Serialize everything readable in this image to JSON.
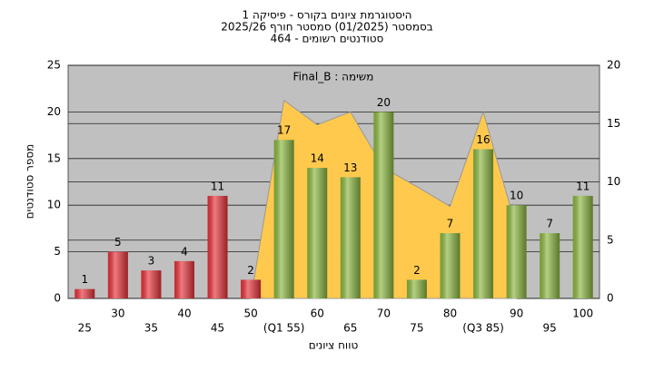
{
  "chart_data": {
    "type": "bar",
    "title": "היסטוגרמת ציונים בקורס - פיסיקה 1",
    "subtitle": "בסמסטר  (01/2025)  סמסטר חורף 2025/26",
    "subtitle2": "סטודנטים רשומים - 464",
    "annotation": "Final_B : משימה",
    "y_label": "מספר סטודנטים",
    "x_label": "טווח ציונים",
    "categories": [
      "25",
      "30",
      "35",
      "40",
      "45",
      "50",
      "(Q1 55)",
      "60",
      "65",
      "70",
      "75",
      "80",
      "(Q3 85)",
      "90",
      "95",
      "100"
    ],
    "values": [
      1,
      5,
      3,
      4,
      11,
      2,
      17,
      14,
      13,
      20,
      2,
      7,
      16,
      10,
      7,
      11
    ],
    "colors": [
      "#e8333a",
      "#e8333a",
      "#e8333a",
      "#e8333a",
      "#e8333a",
      "#e8333a",
      "#8cb840",
      "#8cb840",
      "#8cb840",
      "#8cb840",
      "#8cb840",
      "#8cb840",
      "#8cb840",
      "#8cb840",
      "#8cb840",
      "#8cb840"
    ],
    "area": {
      "color": "#ffc94d",
      "axis": "y2",
      "values": [
        null,
        null,
        null,
        null,
        null,
        0,
        17,
        14.9,
        16,
        11.2,
        9.6,
        7.9,
        16,
        6,
        null,
        null
      ]
    },
    "ylim": [
      0,
      25
    ],
    "yticks": [
      0,
      5,
      10,
      15,
      20,
      25
    ],
    "y2lim": [
      0,
      20
    ],
    "y2ticks": [
      0,
      5,
      10,
      15,
      20
    ],
    "grid": true
  }
}
